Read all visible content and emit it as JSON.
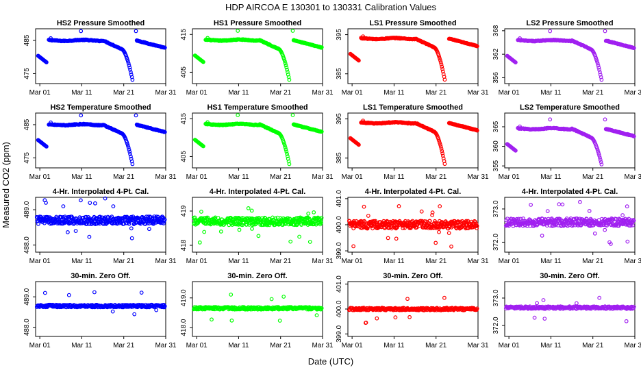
{
  "figure": {
    "title": "HDP   AIRCOA E   130301 to 130331   Calibration Values",
    "xlabel": "Date (UTC)",
    "ylabel": "Measured CO2 (ppm)"
  },
  "colors": {
    "blue": "#0000ff",
    "green": "#00ff00",
    "red": "#ff0000",
    "purple": "#a020f0"
  },
  "chart_data": [
    {
      "type": "scatter",
      "title": "HS2 Pressure Smoothed",
      "series_color": "blue",
      "shape": "pressure",
      "base": 485,
      "ylim": [
        472,
        488.5
      ],
      "yticks": [
        475,
        485
      ],
      "xlim": [
        0,
        31
      ],
      "xticks": [
        1,
        11,
        21,
        31
      ],
      "xticklabels": [
        "Mar 01",
        "Mar 11",
        "Mar 21",
        "Mar 31"
      ]
    },
    {
      "type": "scatter",
      "title": "HS1 Pressure Smoothed",
      "series_color": "green",
      "shape": "pressure",
      "base": 413.5,
      "ylim": [
        402,
        416.5
      ],
      "yticks": [
        405,
        415
      ],
      "xlim": [
        0,
        31
      ],
      "xticks": [
        1,
        11,
        21,
        31
      ],
      "xticklabels": [
        "Mar 01",
        "Mar 11",
        "Mar 21",
        "Mar 31"
      ]
    },
    {
      "type": "scatter",
      "title": "LS1 Pressure Smoothed",
      "series_color": "red",
      "shape": "pressure",
      "base": 394,
      "ylim": [
        382.5,
        396.5
      ],
      "yticks": [
        385,
        395
      ],
      "xlim": [
        0,
        31
      ],
      "xticks": [
        1,
        11,
        21,
        31
      ],
      "xticklabels": [
        "Mar 01",
        "Mar 11",
        "Mar 21",
        "Mar 31"
      ]
    },
    {
      "type": "scatter",
      "title": "LS2 Pressure Smoothed",
      "series_color": "purple",
      "shape": "pressure",
      "base": 365.5,
      "ylim": [
        354.5,
        368.5
      ],
      "yticks": [
        356,
        362,
        368
      ],
      "xlim": [
        0,
        31
      ],
      "xticks": [
        1,
        11,
        21,
        31
      ],
      "xticklabels": [
        "Mar 01",
        "Mar 11",
        "Mar 21",
        "Mar 31"
      ]
    },
    {
      "type": "scatter",
      "title": "HS2 Temperature Smoothed",
      "series_color": "blue",
      "shape": "temperature",
      "base": 485,
      "ylim": [
        472,
        488.5
      ],
      "yticks": [
        475,
        485
      ],
      "xlim": [
        0,
        31
      ],
      "xticks": [
        1,
        11,
        21,
        31
      ],
      "xticklabels": [
        "Mar 01",
        "Mar 11",
        "Mar 21",
        "Mar 31"
      ]
    },
    {
      "type": "scatter",
      "title": "HS1 Temperature Smoothed",
      "series_color": "green",
      "shape": "temperature",
      "base": 413.5,
      "ylim": [
        402,
        416.5
      ],
      "yticks": [
        405,
        415
      ],
      "xlim": [
        0,
        31
      ],
      "xticks": [
        1,
        11,
        21,
        31
      ],
      "xticklabels": [
        "Mar 01",
        "Mar 11",
        "Mar 21",
        "Mar 31"
      ]
    },
    {
      "type": "scatter",
      "title": "LS1 Temperature Smoothed",
      "series_color": "red",
      "shape": "temperature",
      "base": 394,
      "ylim": [
        382.5,
        396.5
      ],
      "yticks": [
        385,
        395
      ],
      "xlim": [
        0,
        31
      ],
      "xticks": [
        1,
        11,
        21,
        31
      ],
      "xticklabels": [
        "Mar 01",
        "Mar 11",
        "Mar 21",
        "Mar 31"
      ]
    },
    {
      "type": "scatter",
      "title": "LS2 Temperature Smoothed",
      "series_color": "purple",
      "shape": "temperature",
      "base": 364.5,
      "ylim": [
        354.5,
        368.5
      ],
      "yticks": [
        355,
        360,
        365
      ],
      "xlim": [
        0,
        31
      ],
      "xticks": [
        1,
        11,
        21,
        31
      ],
      "xticklabels": [
        "Mar 01",
        "Mar 11",
        "Mar 21",
        "Mar 31"
      ]
    },
    {
      "type": "scatter",
      "title": "4-Hr. Interpolated 4-Pt. Cal.",
      "series_color": "blue",
      "shape": "cal",
      "base": 488.7,
      "ylim": [
        487.8,
        489.35
      ],
      "yticks": [
        488.0,
        489.0
      ],
      "ytickfmt": 1,
      "xlim": [
        0,
        31
      ],
      "xticks": [
        1,
        11,
        21,
        31
      ],
      "xticklabels": [
        "Mar 01",
        "Mar 11",
        "Mar 21",
        "Mar 31"
      ]
    },
    {
      "type": "scatter",
      "title": "4-Hr. Interpolated 4-Pt. Cal.",
      "series_color": "green",
      "shape": "cal",
      "base": 418.7,
      "ylim": [
        417.8,
        419.4
      ],
      "yticks": [
        418,
        419
      ],
      "xlim": [
        0,
        31
      ],
      "xticks": [
        1,
        11,
        21,
        31
      ],
      "xticklabels": [
        "Mar 01",
        "Mar 11",
        "Mar 21",
        "Mar 31"
      ]
    },
    {
      "type": "scatter",
      "title": "4-Hr. Interpolated 4-Pt. Cal.",
      "series_color": "red",
      "shape": "cal",
      "base": 400.0,
      "ylim": [
        398.95,
        401.05
      ],
      "yticks": [
        399.0,
        400.0,
        401.0
      ],
      "ytickfmt": 1,
      "xlim": [
        0,
        31
      ],
      "xticks": [
        1,
        11,
        21,
        31
      ],
      "xticklabels": [
        "Mar 01",
        "Mar 11",
        "Mar 21",
        "Mar 31"
      ]
    },
    {
      "type": "scatter",
      "title": "4-Hr. Interpolated 4-Pt. Cal.",
      "series_color": "purple",
      "shape": "cal",
      "base": 372.6,
      "ylim": [
        371.7,
        373.35
      ],
      "yticks": [
        372.0,
        373.0
      ],
      "ytickfmt": 1,
      "xlim": [
        0,
        31
      ],
      "xticks": [
        1,
        11,
        21,
        31
      ],
      "xticklabels": [
        "Mar 01",
        "Mar 11",
        "Mar 21",
        "Mar 31"
      ]
    },
    {
      "type": "scatter",
      "title": "30-min. Zero Off.",
      "series_color": "blue",
      "shape": "zero",
      "base": 488.7,
      "ylim": [
        487.7,
        489.5
      ],
      "yticks": [
        488.0,
        489.0
      ],
      "ytickfmt": 1,
      "xlim": [
        0,
        31
      ],
      "xticks": [
        1,
        11,
        21,
        31
      ],
      "xticklabels": [
        "Mar 01",
        "Mar 11",
        "Mar 21",
        "Mar 31"
      ]
    },
    {
      "type": "scatter",
      "title": "30-min. Zero Off.",
      "series_color": "green",
      "shape": "zero",
      "base": 418.65,
      "ylim": [
        417.7,
        419.55
      ],
      "yticks": [
        418.0,
        419.0
      ],
      "ytickfmt": 1,
      "xlim": [
        0,
        31
      ],
      "xticks": [
        1,
        11,
        21,
        31
      ],
      "xticklabels": [
        "Mar 01",
        "Mar 11",
        "Mar 21",
        "Mar 31"
      ]
    },
    {
      "type": "scatter",
      "title": "30-min. Zero Off.",
      "series_color": "red",
      "shape": "zero",
      "base": 400.0,
      "ylim": [
        398.9,
        401.1
      ],
      "yticks": [
        399.0,
        400.0,
        401.0
      ],
      "ytickfmt": 1,
      "xlim": [
        0,
        31
      ],
      "xticks": [
        1,
        11,
        21,
        31
      ],
      "xticklabels": [
        "Mar 01",
        "Mar 11",
        "Mar 21",
        "Mar 31"
      ]
    },
    {
      "type": "scatter",
      "title": "30-min. Zero Off.",
      "series_color": "purple",
      "shape": "zero",
      "base": 372.65,
      "ylim": [
        371.6,
        373.6
      ],
      "yticks": [
        372.0,
        373.0
      ],
      "ytickfmt": 1,
      "xlim": [
        0,
        31
      ],
      "xticks": [
        1,
        11,
        21,
        31
      ],
      "xticklabels": [
        "Mar 01",
        "Mar 11",
        "Mar 21",
        "Mar 31"
      ]
    }
  ]
}
